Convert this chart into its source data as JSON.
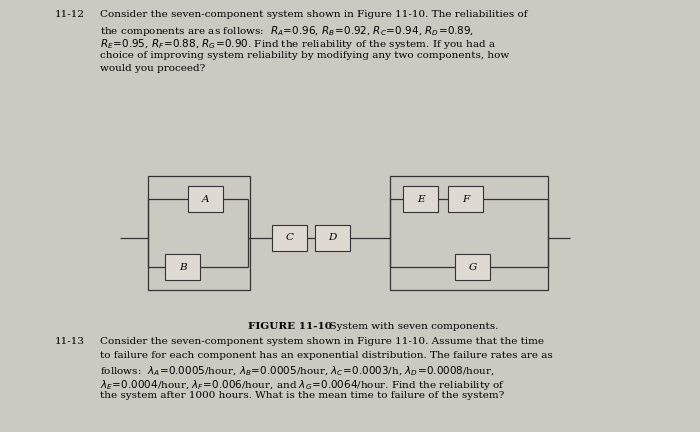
{
  "background_color": "#ccc9c2",
  "text_color": "#000000",
  "fig_width": 7.0,
  "fig_height": 4.32,
  "figure_caption_bold": "FIGURE 11-10",
  "figure_caption_normal": "  System with seven components.",
  "box_facecolor": "#dedad3",
  "box_edgecolor": "#333333",
  "line_color": "#333333",
  "p12_label": "11-12",
  "p12_line1": "Consider the seven-component system shown in Figure 11-10. The reliabilities of",
  "p12_line2": "the components are as follows:  R",
  "p12_line3": "R",
  "p12_line4": "choice of improving system reliability by modifying any two components, how",
  "p12_line5": "would you proceed?",
  "p13_label": "11-13",
  "p13_line1": "Consider the seven-component system shown in Figure 11-10. Assume that the time",
  "p13_line2": "to failure for each component has an exponential distribution. The failure rates are as",
  "p13_line3": "follows: ",
  "p13_line4": "hour,",
  "p13_line5": "the system after 1000 hours. What is the mean time to failure of the system?"
}
